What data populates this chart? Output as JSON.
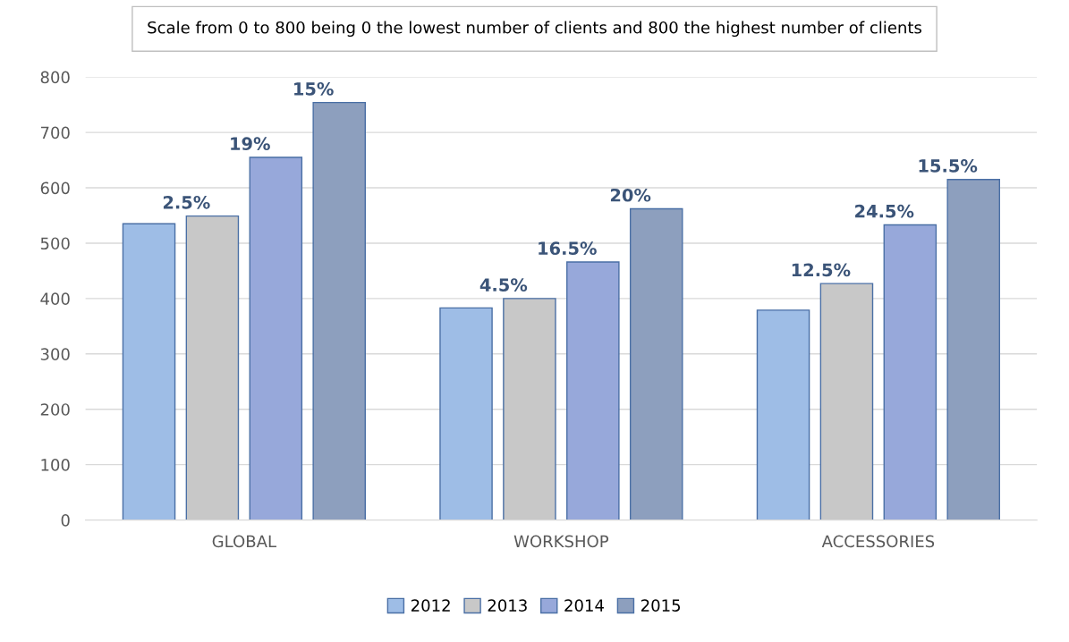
{
  "chart_data": {
    "type": "bar",
    "title": "Scale from 0 to 800 being 0 the lowest number of clients and 800 the highest number of clients",
    "categories": [
      "GLOBAL",
      "WORKSHOP",
      "ACCESSORIES"
    ],
    "series": [
      {
        "name": "2012",
        "color": "#9ebde6",
        "values": [
          535,
          383,
          379
        ]
      },
      {
        "name": "2013",
        "color": "#c8c8c8",
        "values": [
          549,
          400,
          427
        ]
      },
      {
        "name": "2014",
        "color": "#97a8da",
        "values": [
          655,
          466,
          533
        ]
      },
      {
        "name": "2015",
        "color": "#8d9fbe",
        "values": [
          754,
          562,
          615
        ]
      }
    ],
    "annotations": [
      "2.5%",
      "19%",
      "15%",
      "4.5%",
      "16.5%",
      "20%",
      "12.5%",
      "24.5%",
      "15.5%"
    ],
    "ylim": [
      0,
      800
    ],
    "yticks": [
      0,
      100,
      200,
      300,
      400,
      500,
      600,
      700,
      800
    ],
    "grid": "y",
    "legend": "bottom"
  }
}
